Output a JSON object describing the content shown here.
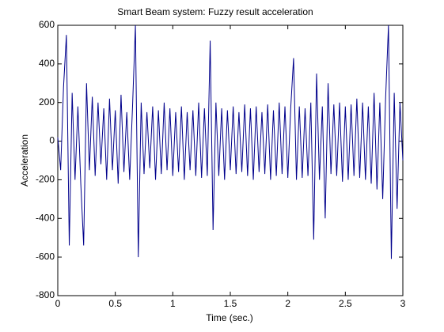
{
  "chart_data": {
    "type": "line",
    "title": "Smart Beam system: Fuzzy result acceleration",
    "xlabel": "Time (sec.)",
    "ylabel": "Acceleration",
    "color": "#00008b",
    "x": [
      0,
      0.025,
      0.05,
      0.075,
      0.1,
      0.125,
      0.15,
      0.175,
      0.2,
      0.225,
      0.25,
      0.275,
      0.3,
      0.325,
      0.35,
      0.375,
      0.4,
      0.425,
      0.45,
      0.475,
      0.5,
      0.525,
      0.55,
      0.575,
      0.6,
      0.625,
      0.65,
      0.675,
      0.7,
      0.725,
      0.75,
      0.775,
      0.8,
      0.825,
      0.85,
      0.875,
      0.9,
      0.925,
      0.95,
      0.975,
      1,
      1.025,
      1.05,
      1.075,
      1.1,
      1.125,
      1.15,
      1.175,
      1.2,
      1.225,
      1.25,
      1.275,
      1.3,
      1.325,
      1.35,
      1.375,
      1.4,
      1.425,
      1.45,
      1.475,
      1.5,
      1.525,
      1.55,
      1.575,
      1.6,
      1.625,
      1.65,
      1.675,
      1.7,
      1.725,
      1.75,
      1.775,
      1.8,
      1.825,
      1.85,
      1.875,
      1.9,
      1.925,
      1.95,
      1.975,
      2,
      2.025,
      2.05,
      2.075,
      2.1,
      2.125,
      2.15,
      2.175,
      2.2,
      2.225,
      2.25,
      2.275,
      2.3,
      2.325,
      2.35,
      2.375,
      2.4,
      2.425,
      2.45,
      2.475,
      2.5,
      2.525,
      2.55,
      2.575,
      2.6,
      2.625,
      2.65,
      2.675,
      2.7,
      2.725,
      2.75,
      2.775,
      2.8,
      2.825,
      2.85,
      2.875,
      2.9,
      2.925,
      2.95,
      2.975,
      3
    ],
    "values": [
      20,
      -150,
      280,
      550,
      -540,
      250,
      -200,
      180,
      -220,
      -540,
      300,
      -150,
      230,
      -180,
      200,
      -120,
      170,
      -200,
      220,
      -150,
      160,
      -220,
      240,
      -160,
      150,
      -200,
      180,
      600,
      -600,
      200,
      -170,
      150,
      -140,
      180,
      -200,
      160,
      -170,
      200,
      -150,
      170,
      -180,
      150,
      -160,
      180,
      -200,
      150,
      -150,
      160,
      -180,
      200,
      -190,
      170,
      -180,
      520,
      -460,
      200,
      -180,
      170,
      -200,
      160,
      -150,
      180,
      -170,
      150,
      -160,
      190,
      -180,
      170,
      -200,
      180,
      -160,
      150,
      -170,
      190,
      -200,
      160,
      -180,
      200,
      -170,
      180,
      -190,
      170,
      430,
      -200,
      180,
      -190,
      170,
      -180,
      200,
      -510,
      350,
      -200,
      180,
      -400,
      300,
      -170,
      190,
      -180,
      200,
      -210,
      180,
      -200,
      190,
      -180,
      220,
      -190,
      200,
      -200,
      180,
      -220,
      250,
      -250,
      200,
      -300,
      220,
      600,
      -610,
      250,
      -350,
      200,
      -100
    ],
    "xlim": [
      0,
      3
    ],
    "ylim": [
      -800,
      600
    ],
    "xticks": [
      0,
      0.5,
      1,
      1.5,
      2,
      2.5,
      3
    ],
    "yticks": [
      -800,
      -600,
      -400,
      -200,
      0,
      200,
      400,
      600
    ]
  }
}
